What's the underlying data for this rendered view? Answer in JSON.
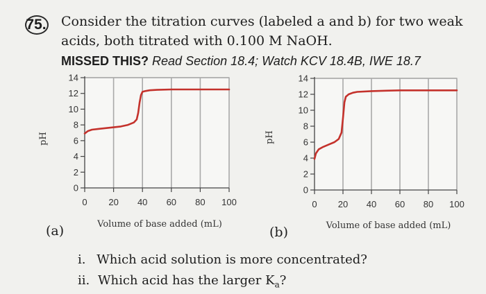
{
  "question": {
    "number": "75.",
    "line1": "Consider the titration curves (labeled a and b) for two weak",
    "line2": "acids, both titrated with 0.100 M NaOH.",
    "missed_label": "MISSED THIS?",
    "missed_text": "Read Section 18.4; Watch KCV 18.4B, IWE 18.7"
  },
  "panels": {
    "a_label": "(a)",
    "b_label": "(b)"
  },
  "sub_questions": [
    {
      "num": "i.",
      "text": "Which acid solution is more concentrated?"
    },
    {
      "num": "ii.",
      "text": "Which acid has the larger K",
      "subscript": "a",
      "suffix": "?"
    }
  ],
  "chart_data": [
    {
      "type": "line",
      "panel": "(a)",
      "xlabel": "Volume of base added (mL)",
      "ylabel": "pH",
      "xlim": [
        0,
        100
      ],
      "ylim": [
        0,
        14
      ],
      "x_ticks": [
        0,
        20,
        40,
        60,
        80,
        100
      ],
      "y_ticks": [
        0,
        2,
        4,
        6,
        8,
        10,
        12,
        14
      ],
      "x_ticks_labeled": [
        0,
        20,
        40,
        60,
        80,
        100
      ],
      "y_ticks_labeled": [
        0,
        2,
        4,
        6,
        8,
        10,
        12,
        14
      ],
      "vertical_gridlines": [
        20,
        40,
        60,
        80,
        100
      ],
      "line_color": "#c4322c",
      "series": [
        {
          "x": [
            0,
            2,
            5,
            10,
            15,
            20,
            25,
            30,
            34,
            36,
            37,
            38,
            39,
            40,
            42,
            45,
            50,
            60,
            70,
            80,
            100
          ],
          "y": [
            6.9,
            7.2,
            7.4,
            7.5,
            7.6,
            7.7,
            7.8,
            8.0,
            8.3,
            8.7,
            9.5,
            10.8,
            11.8,
            12.2,
            12.3,
            12.4,
            12.45,
            12.5,
            12.5,
            12.5,
            12.5
          ]
        }
      ]
    },
    {
      "type": "line",
      "panel": "(b)",
      "xlabel": "Volume of base added (mL)",
      "ylabel": "pH",
      "xlim": [
        0,
        100
      ],
      "ylim": [
        0,
        14
      ],
      "x_ticks": [
        0,
        20,
        40,
        60,
        80,
        100
      ],
      "y_ticks": [
        0,
        2,
        4,
        6,
        8,
        10,
        12,
        14
      ],
      "x_ticks_labeled": [
        0,
        20,
        40,
        60,
        80,
        100
      ],
      "y_ticks_labeled": [
        0,
        2,
        4,
        6,
        8,
        10,
        12,
        14
      ],
      "vertical_gridlines": [
        20,
        40,
        60,
        80,
        100
      ],
      "line_color": "#c4322c",
      "series": [
        {
          "x": [
            0,
            1,
            3,
            6,
            10,
            14,
            17,
            19,
            20,
            21,
            22,
            24,
            27,
            30,
            40,
            50,
            60,
            80,
            100
          ],
          "y": [
            3.9,
            4.6,
            5.1,
            5.4,
            5.7,
            6.0,
            6.4,
            7.2,
            9.0,
            11.0,
            11.7,
            12.0,
            12.2,
            12.3,
            12.4,
            12.45,
            12.5,
            12.5,
            12.5
          ]
        }
      ]
    }
  ]
}
